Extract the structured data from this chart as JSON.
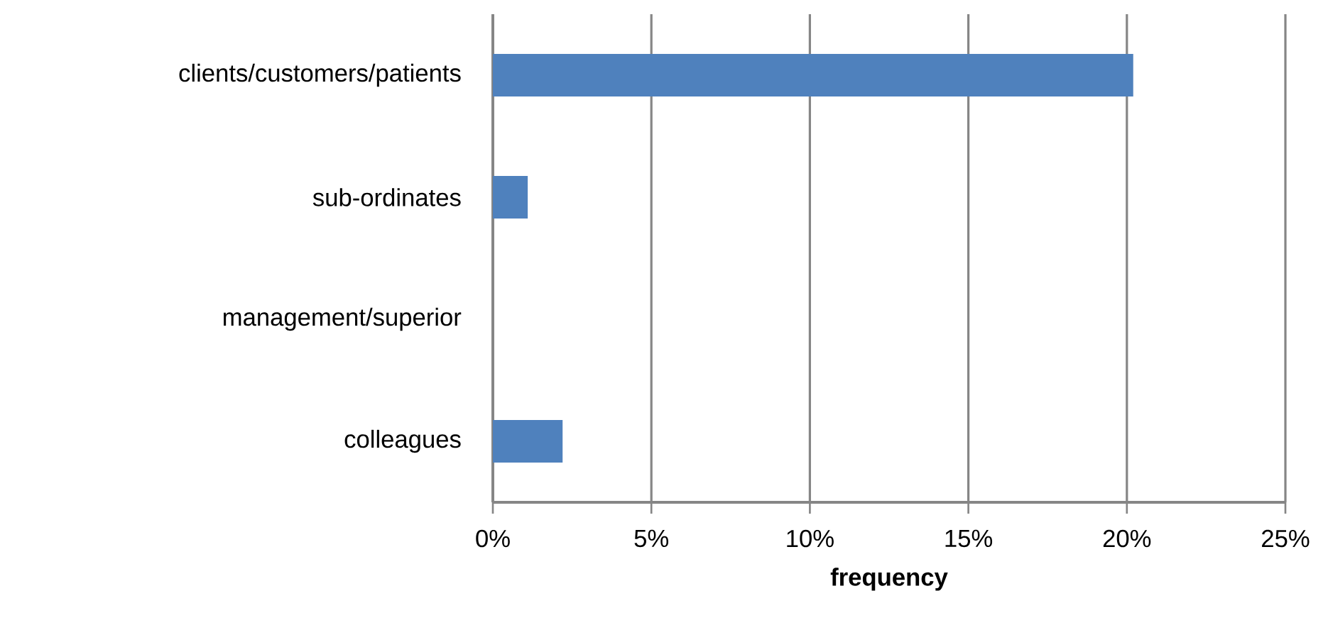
{
  "chart_data": {
    "type": "bar",
    "orientation": "horizontal",
    "categories": [
      "clients/customers/patients",
      "sub-ordinates",
      "management/superior",
      "colleagues"
    ],
    "values": [
      20.2,
      1.1,
      0,
      2.2
    ],
    "color": "#4f81bd",
    "xlabel": "frequency",
    "xlim": [
      0,
      25
    ],
    "xticks": [
      {
        "value": 0,
        "label": "0%"
      },
      {
        "value": 5,
        "label": "5%"
      },
      {
        "value": 10,
        "label": "10%"
      },
      {
        "value": 15,
        "label": "15%"
      },
      {
        "value": 20,
        "label": "20%"
      },
      {
        "value": 25,
        "label": "25%"
      }
    ],
    "grid": "x"
  }
}
